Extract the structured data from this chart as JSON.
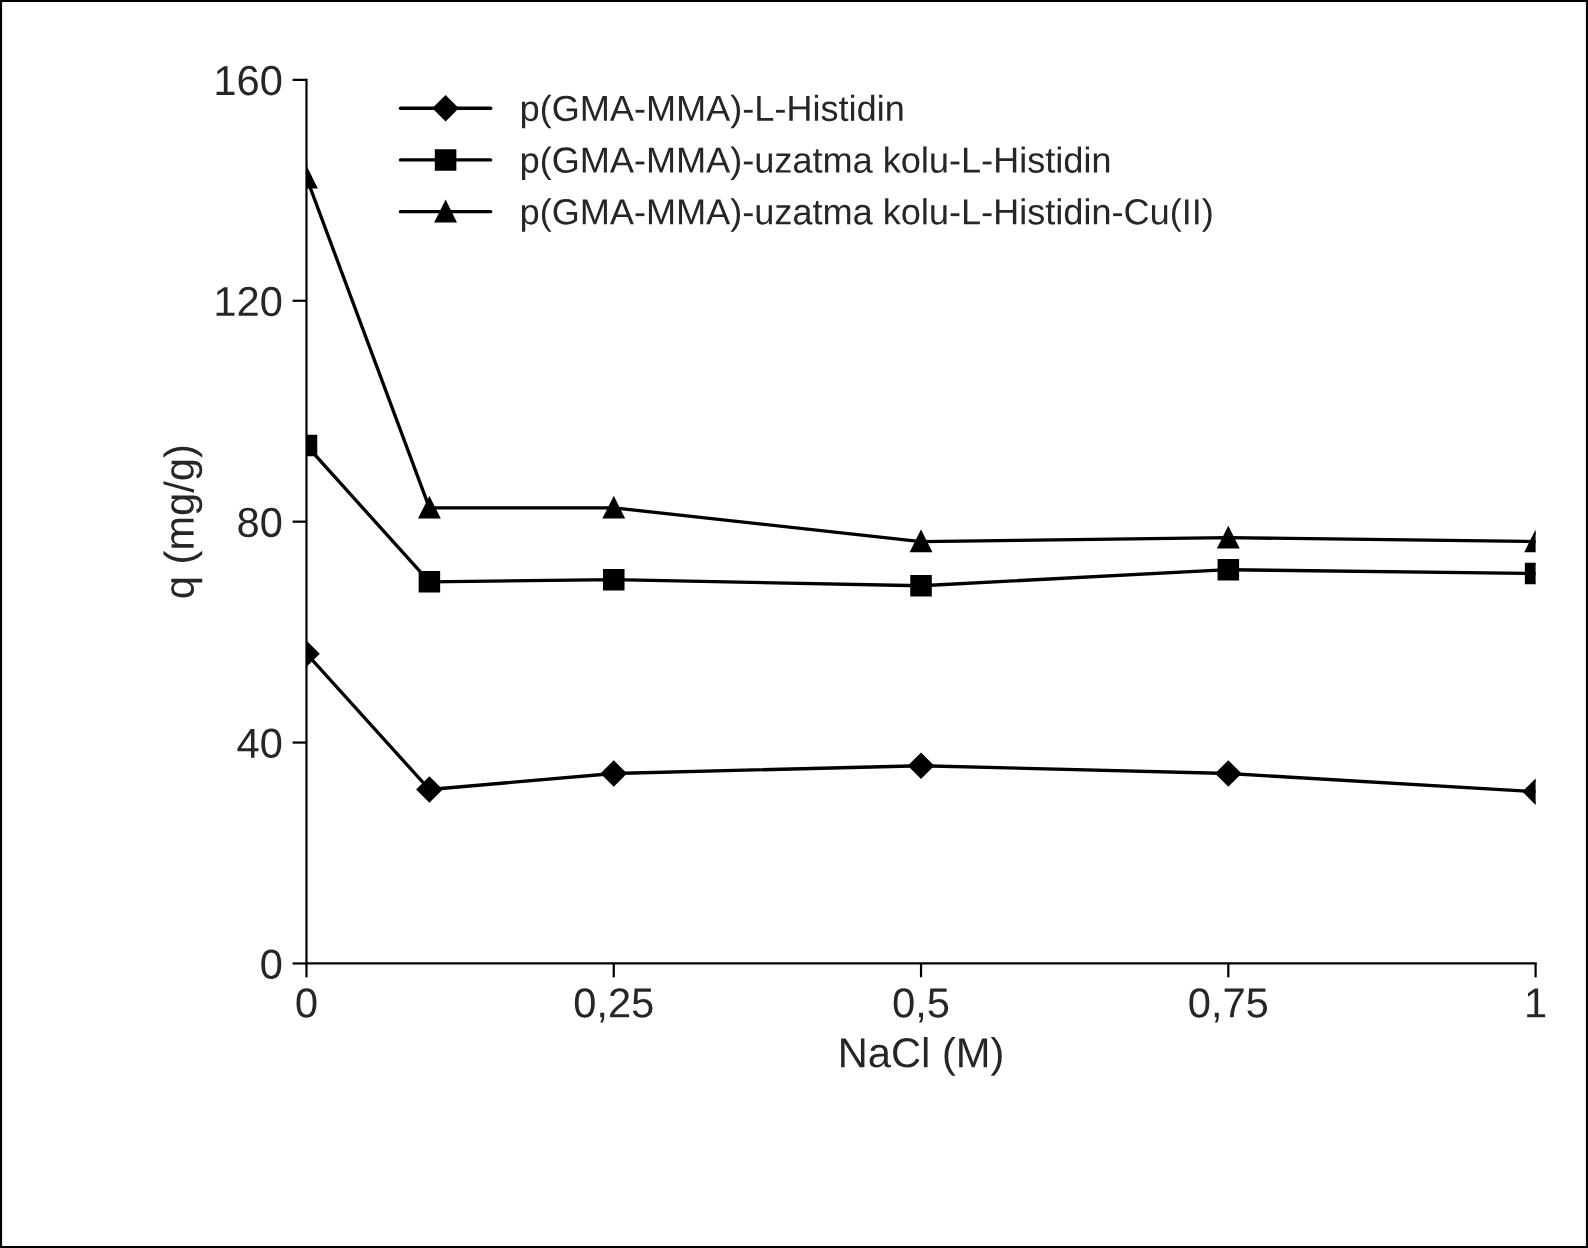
{
  "chart_data": {
    "type": "line",
    "xlabel": "NaCl (M)",
    "ylabel": "q (mg/g)",
    "x": [
      0,
      0.1,
      0.25,
      0.5,
      0.75,
      1
    ],
    "xlim": [
      0,
      1
    ],
    "xticks": [
      0,
      {
        "value": 0.25,
        "label": "0,25"
      },
      {
        "value": 0.5,
        "label": "0,5"
      },
      {
        "value": 0.75,
        "label": "0,75"
      },
      1
    ],
    "ylim": [
      0,
      160
    ],
    "yticks": [
      0,
      40,
      80,
      120,
      160
    ],
    "grid": false,
    "legend": "top left",
    "line_style": "solid",
    "series": [
      {
        "name": "p(GMA-MMA)-L-Histidin",
        "color": "#000000",
        "marker": "diamond",
        "values": [
          56.1,
          31.5,
          34.4,
          35.8,
          34.4,
          31.1
        ]
      },
      {
        "name": "p(GMA-MMA)-uzatma kolu-L-Histidin",
        "color": "#000000",
        "marker": "square",
        "values": [
          93.8,
          69.1,
          69.5,
          68.4,
          71.3,
          70.6
        ]
      },
      {
        "name": "p(GMA-MMA)-uzatma kolu-L-Histidin-Cu(II)",
        "color": "#000000",
        "marker": "triangle",
        "values": [
          142.3,
          82.5,
          82.5,
          76.4,
          77.1,
          76.4
        ]
      }
    ]
  }
}
